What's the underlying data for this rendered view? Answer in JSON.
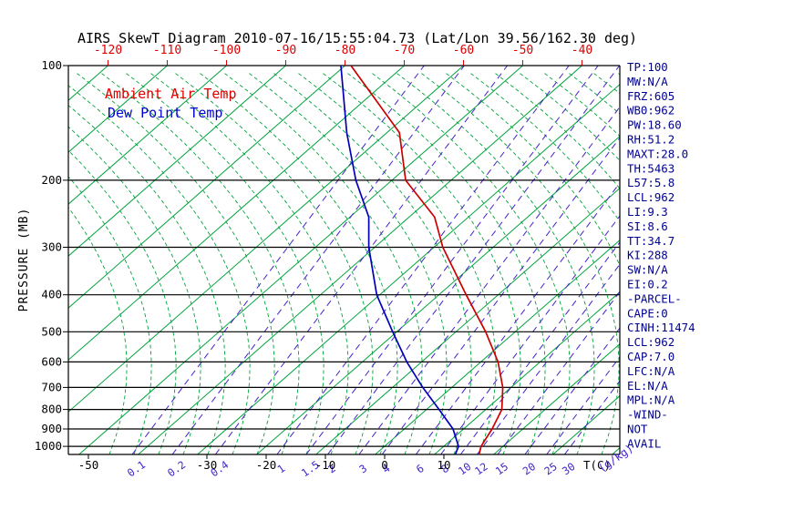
{
  "title": "AIRS SkewT Diagram 2010-07-16/15:55:04.73 (Lat/Lon 39.56/162.30 deg)",
  "legend": {
    "temp": "Ambient Air Temp",
    "dewpoint": "Dew Point Temp"
  },
  "axes": {
    "y_label": "PRESSURE (MB)",
    "pressure_ticks": [
      100,
      200,
      300,
      400,
      500,
      600,
      700,
      800,
      900,
      1000
    ],
    "top_temp_ticks": [
      -120,
      -110,
      -100,
      -90,
      -80,
      -70,
      -60,
      -50,
      -40
    ],
    "bottom_temp_ticks": [
      -50,
      -30,
      -20,
      -10,
      0,
      10
    ],
    "bottom_temp_unit": "T(C)",
    "mixing_ratio_ticks": [
      0.1,
      0.2,
      0.4,
      1,
      1.5,
      2,
      3,
      4,
      6,
      8,
      10,
      12,
      15,
      20,
      25,
      30
    ],
    "mixing_ratio_unit": "(g/kg)"
  },
  "stats": [
    "TP:100",
    "MW:N/A",
    "FRZ:605",
    "WB0:962",
    "PW:18.60",
    "RH:51.2",
    "MAXT:28.0",
    "TH:5463",
    "L57:5.8",
    "LCL:962",
    "LI:9.3",
    "SI:8.6",
    "TT:34.7",
    "KI:288",
    "SW:N/A",
    "EI:0.2",
    "-PARCEL-",
    "CAPE:0",
    "CINH:11474",
    "LCL:962",
    "CAP:7.0",
    "LFC:N/A",
    "EL:N/A",
    "MPL:N/A",
    "-WIND-",
    "NOT",
    "AVAIL"
  ],
  "colors": {
    "isotherm_green": "#00a33c",
    "moist_adiabat_green": "#00a33c",
    "mixing_ratio_purple": "#4422cc",
    "pressure_black": "#000000",
    "top_axis_red": "#dd0000",
    "stats_navy": "#000090",
    "ambient_red": "#cc0000",
    "dewpoint_blue": "#0000bb"
  },
  "chart_data": {
    "type": "line",
    "title": "AIRS SkewT Diagram 2010-07-16/15:55:04.73 (Lat/Lon 39.56/162.30 deg)",
    "xlabel": "T(C)",
    "ylabel": "PRESSURE (MB)",
    "y_scale": "log",
    "pressure_range_mb": [
      100,
      1050
    ],
    "isotherm_step_c": 10,
    "skewed": true,
    "legend_position": "top-left",
    "series": [
      {
        "name": "Ambient Air Temp",
        "color": "#cc0000",
        "pressure_mb": [
          1050,
          1000,
          900,
          800,
          700,
          600,
          500,
          400,
          300,
          250,
          200,
          150,
          100
        ],
        "temp_c": [
          17.5,
          16.3,
          14.8,
          12.7,
          8.6,
          2.9,
          -5.0,
          -15.4,
          -28.5,
          -35.7,
          -47.7,
          -57.9,
          -79.0
        ]
      },
      {
        "name": "Dew Point Temp",
        "color": "#0000bb",
        "pressure_mb": [
          1050,
          1000,
          900,
          800,
          700,
          600,
          500,
          400,
          300,
          250,
          200,
          150,
          100
        ],
        "temp_c": [
          13.5,
          12.5,
          8.2,
          2.1,
          -4.9,
          -12.5,
          -20.7,
          -30.5,
          -41.0,
          -46.8,
          -56.1,
          -66.8,
          -80.7
        ]
      }
    ]
  }
}
